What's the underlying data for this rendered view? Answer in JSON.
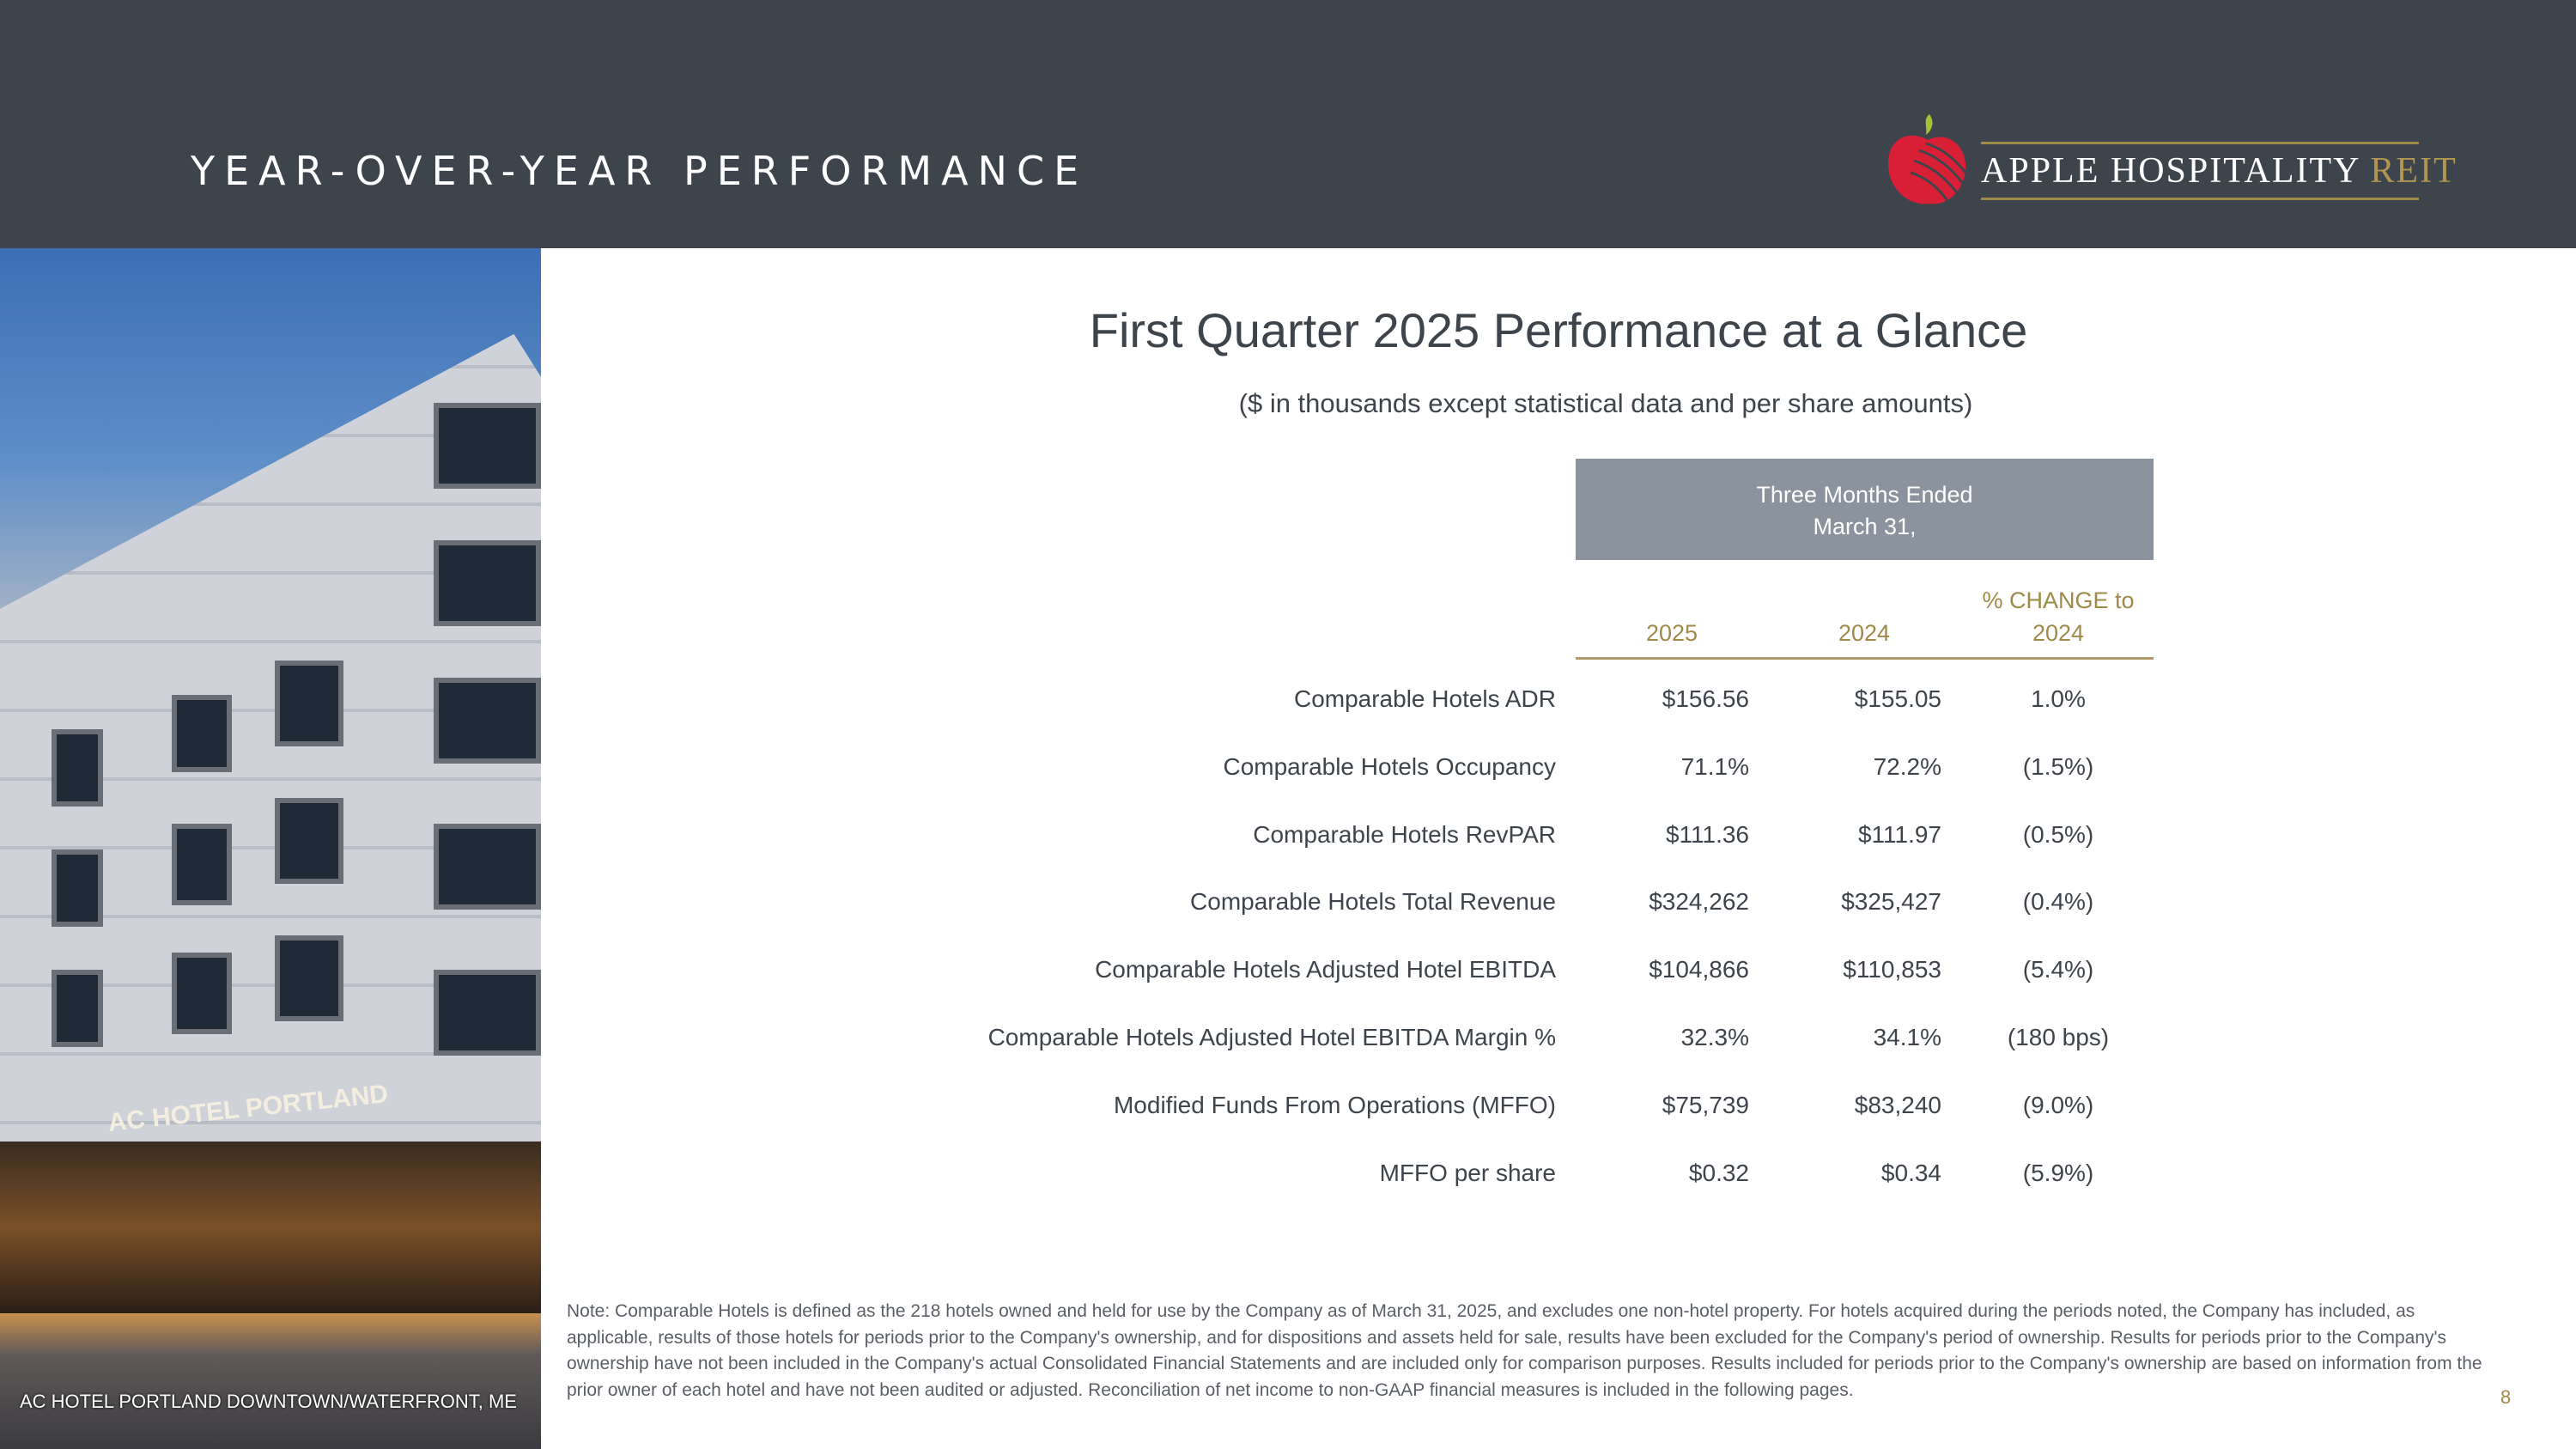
{
  "header": {
    "section_title": "YEAR-OVER-YEAR PERFORMANCE",
    "logo_text": "APPLE HOSPITALITY",
    "logo_text_accent": "REIT"
  },
  "photo": {
    "sign_text": "AC HOTEL PORTLAND",
    "caption": "AC HOTEL PORTLAND DOWNTOWN/WATERFRONT, ME"
  },
  "main": {
    "title": "First Quarter 2025 Performance at a Glance",
    "subtitle": "($ in thousands except statistical data and per share amounts)",
    "period_header": [
      "Three Months Ended",
      "March 31,"
    ],
    "columns": [
      "2025",
      "2024",
      "% CHANGE to",
      "2024"
    ],
    "rows": [
      {
        "label": "Comparable Hotels ADR",
        "v2025": "$156.56",
        "v2024": "$155.05",
        "change": "1.0%"
      },
      {
        "label": "Comparable Hotels Occupancy",
        "v2025": "71.1%",
        "v2024": "72.2%",
        "change": "(1.5%)"
      },
      {
        "label": "Comparable Hotels RevPAR",
        "v2025": "$111.36",
        "v2024": "$111.97",
        "change": "(0.5%)"
      },
      {
        "label": "Comparable Hotels Total Revenue",
        "v2025": "$324,262",
        "v2024": "$325,427",
        "change": "(0.4%)"
      },
      {
        "label": "Comparable Hotels Adjusted Hotel EBITDA",
        "v2025": "$104,866",
        "v2024": "$110,853",
        "change": "(5.4%)"
      },
      {
        "label": "Comparable Hotels Adjusted Hotel EBITDA Margin %",
        "v2025": "32.3%",
        "v2024": "34.1%",
        "change": "(180 bps)"
      },
      {
        "label": "Modified Funds From Operations (MFFO)",
        "v2025": "$75,739",
        "v2024": "$83,240",
        "change": "(9.0%)"
      },
      {
        "label": "MFFO per share",
        "v2025": "$0.32",
        "v2024": "$0.34",
        "change": "(5.9%)"
      }
    ]
  },
  "note": "Note:  Comparable Hotels is defined as the 218 hotels owned and held for use by the Company as of March 31, 2025, and excludes one non-hotel property. For hotels acquired during the periods noted, the Company has included, as applicable, results of those hotels for periods prior to the Company's ownership, and for dispositions and assets held for sale, results have been excluded for the Company's period of ownership. Results for periods prior to the Company's ownership have not been included in the Company's actual Consolidated Financial Statements and are included only for comparison purposes. Results included for periods prior to the Company's ownership are based on information from the prior owner of each hotel and have not been audited or adjusted. Reconciliation of net income to non-GAAP financial measures is included in the following pages.",
  "page_number": "8",
  "colors": {
    "header_bg": "#3e444b",
    "gold": "#a08a4a",
    "period_box": "#8a939e",
    "logo_red": "#d81f36",
    "logo_leaf": "#a4c232"
  }
}
